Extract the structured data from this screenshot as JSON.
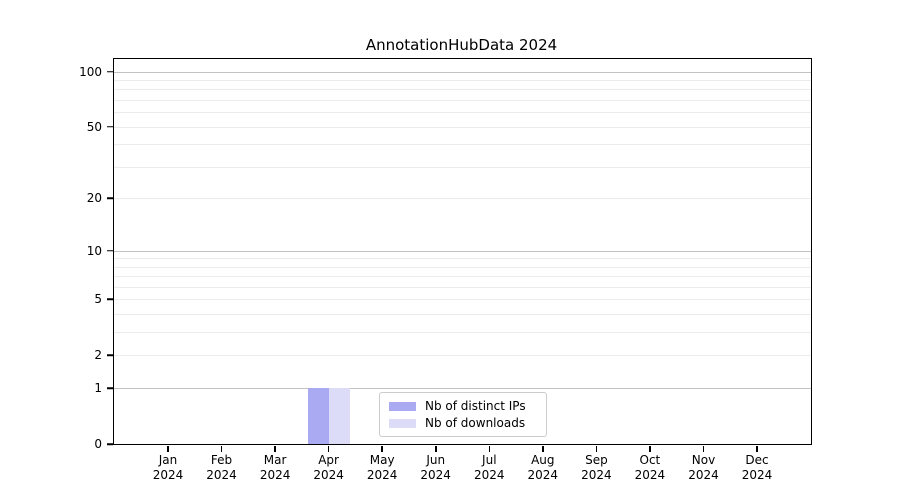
{
  "title": "AnnotationHubData 2024",
  "chart_data": {
    "type": "bar",
    "title": "AnnotationHubData 2024",
    "categories": [
      "Jan 2024",
      "Feb 2024",
      "Mar 2024",
      "Apr 2024",
      "May 2024",
      "Jun 2024",
      "Jul 2024",
      "Aug 2024",
      "Sep 2024",
      "Oct 2024",
      "Nov 2024",
      "Dec 2024"
    ],
    "x_tick_line1": [
      "Jan",
      "Feb",
      "Mar",
      "Apr",
      "May",
      "Jun",
      "Jul",
      "Aug",
      "Sep",
      "Oct",
      "Nov",
      "Dec"
    ],
    "x_tick_line2": "2024",
    "series": [
      {
        "name": "Nb of distinct IPs",
        "color": "#aaaaf2",
        "values": [
          0,
          0,
          0,
          1,
          0,
          0,
          0,
          0,
          0,
          0,
          0,
          0
        ]
      },
      {
        "name": "Nb of downloads",
        "color": "#dcdcf8",
        "values": [
          0,
          0,
          0,
          1,
          0,
          0,
          0,
          0,
          0,
          0,
          0,
          0
        ]
      }
    ],
    "xlabel": "",
    "ylabel": "",
    "y_scale": "log1p",
    "y_tick_values": [
      0,
      1,
      2,
      5,
      10,
      20,
      50,
      100
    ],
    "y_tick_labels": [
      "0",
      "1",
      "2",
      "5",
      "10",
      "20",
      "50",
      "100"
    ],
    "y_major_gridline_values": [
      1,
      10,
      100
    ],
    "y_minor_gridline_values": [
      2,
      3,
      4,
      5,
      6,
      7,
      8,
      9,
      20,
      30,
      40,
      50,
      60,
      70,
      80,
      90
    ],
    "ylim": [
      0,
      117
    ],
    "grid": "horizontal",
    "legend_position": "lower center"
  },
  "legend": {
    "items": [
      {
        "label": "Nb of distinct IPs",
        "color": "#aaaaf2"
      },
      {
        "label": "Nb of downloads",
        "color": "#dcdcf8"
      }
    ]
  },
  "colors": {
    "background": "#ffffff",
    "axis": "#000000",
    "major_grid": "#c2c2c2",
    "minor_grid": "#ececec",
    "bar_distinct_ips": "#aaaaf2",
    "bar_downloads": "#dcdcf8",
    "legend_border": "#cccccc"
  }
}
